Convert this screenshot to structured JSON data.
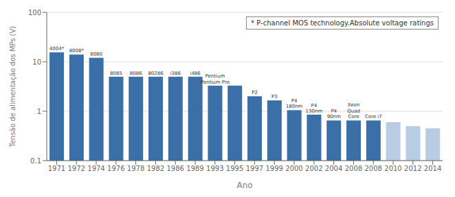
{
  "chart_data": {
    "type": "bar",
    "categories": [
      "1971",
      "1972",
      "1974",
      "1976",
      "1978",
      "1982",
      "1986",
      "1989",
      "1993",
      "1995",
      "1997",
      "1999",
      "2000",
      "2002",
      "2004",
      "2008",
      "2008",
      "2010",
      "2012",
      "2014"
    ],
    "values": [
      15.5,
      14.0,
      12.0,
      5.0,
      5.0,
      5.0,
      5.0,
      5.0,
      3.3,
      3.3,
      2.0,
      1.65,
      1.05,
      0.85,
      0.65,
      0.65,
      0.65,
      0.6,
      0.5,
      0.45
    ],
    "colors": [
      "#3a6fa8",
      "#3a6fa8",
      "#3a6fa8",
      "#3a6fa8",
      "#3a6fa8",
      "#3a6fa8",
      "#3a6fa8",
      "#3a6fa8",
      "#3a6fa8",
      "#3a6fa8",
      "#3a6fa8",
      "#3a6fa8",
      "#3a6fa8",
      "#3a6fa8",
      "#3a6fa8",
      "#3a6fa8",
      "#3a6fa8",
      "#b8cce4",
      "#b8cce4",
      "#b8cce4"
    ],
    "bar_labels": [
      "4004*",
      "8008*",
      "8080",
      "8085",
      "8086",
      "80286",
      "i386",
      "i486",
      "Pentium\nPentium Pro",
      null,
      "P2",
      "P3",
      "P4\n180nm",
      "P4\n130nm",
      "P4\n90nm",
      "Xeon\nQuad\nCore",
      "Core i7",
      null,
      null,
      null
    ],
    "annotations": [
      "* P-channel MOS technology.Absolute voltage ratings"
    ],
    "xlabel": "Ano",
    "ylabel": "Tensão de alimentação dos MPs (V)",
    "log": "y",
    "ylim": [
      0.1,
      100
    ],
    "yticks": [
      0.1,
      1,
      10,
      100
    ],
    "grid": true
  }
}
